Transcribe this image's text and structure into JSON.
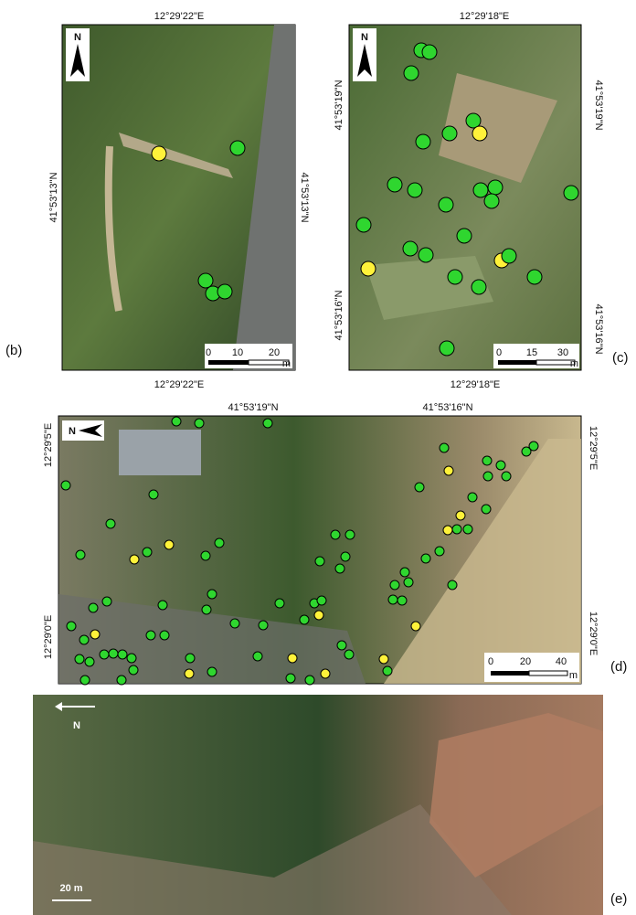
{
  "panels": [
    {
      "label": "(b)",
      "north": "N",
      "top": "12°29'22\"E",
      "bottom": "12°29'22\"E",
      "left": [
        "41°53'13\"N"
      ],
      "right": [
        "41°53'13\"N"
      ],
      "scale": [
        "0",
        "10",
        "20",
        "m"
      ]
    },
    {
      "label": "(c)",
      "north": "N",
      "top": "12°29'18\"E",
      "bottom": "12°29'18\"E",
      "left": [
        "41°53'19\"N",
        "41°53'16\"N"
      ],
      "right": [
        "41°53'19\"N",
        "41°53'16\"N"
      ],
      "scale": [
        "0",
        "15",
        "30",
        "m"
      ]
    },
    {
      "label": "(d)",
      "north": "N",
      "top": [
        "41°53'19\"N",
        "41°53'16\"N"
      ],
      "left": [
        "12°29'5\"E",
        "12°29'0\"E"
      ],
      "right": [
        "12°29'5\"E",
        "12°29'0\"E"
      ],
      "scale": [
        "0",
        "20",
        "40",
        "m"
      ]
    },
    {
      "label": "(e)",
      "north": "N",
      "scale": "20 m"
    }
  ]
}
